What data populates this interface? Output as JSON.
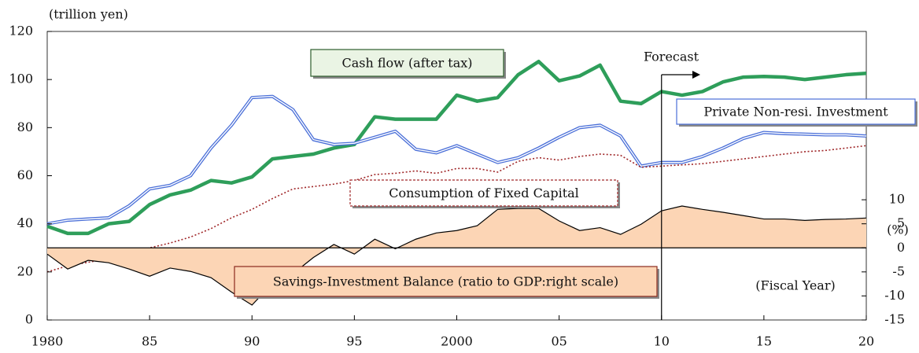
{
  "chart_data": {
    "type": "line",
    "y_axis_label": "(trillion yen)",
    "y2_axis_label": "(%)",
    "x_axis_label": "(Fiscal Year)",
    "forecast_label": "Forecast",
    "forecast_start": 2010,
    "x": [
      1980,
      1981,
      1982,
      1983,
      1984,
      1985,
      1986,
      1987,
      1988,
      1989,
      1990,
      1991,
      1992,
      1993,
      1994,
      1995,
      1996,
      1997,
      1998,
      1999,
      2000,
      2001,
      2002,
      2003,
      2004,
      2005,
      2006,
      2007,
      2008,
      2009,
      2010,
      2011,
      2012,
      2013,
      2014,
      2015,
      2016,
      2017,
      2018,
      2019,
      2020
    ],
    "xlim": [
      1980,
      2020
    ],
    "xticks": [
      {
        "value": 1980,
        "label": "1980"
      },
      {
        "value": 1985,
        "label": "85"
      },
      {
        "value": 1990,
        "label": "90"
      },
      {
        "value": 1995,
        "label": "95"
      },
      {
        "value": 2000,
        "label": "2000"
      },
      {
        "value": 2005,
        "label": "05"
      },
      {
        "value": 2010,
        "label": "10"
      },
      {
        "value": 2015,
        "label": "15"
      },
      {
        "value": 2020,
        "label": "20"
      }
    ],
    "ylim": [
      0,
      120
    ],
    "yticks": [
      0,
      20,
      40,
      60,
      80,
      100,
      120
    ],
    "y2lim": [
      -15,
      45
    ],
    "y2ticks": [
      -15,
      -10,
      -5,
      0,
      5,
      10
    ],
    "series": [
      {
        "name": "Cash flow (after tax)",
        "color": "#2e9e5a",
        "style": "thick",
        "values": [
          39,
          36,
          36,
          40,
          41,
          48,
          52,
          54,
          58,
          57,
          59.5,
          67,
          68,
          69,
          71.5,
          73,
          84.5,
          83.5,
          83.5,
          83.5,
          93.5,
          91,
          92.5,
          102,
          107.5,
          99.5,
          101.5,
          106,
          91,
          90,
          95,
          93.5,
          95,
          99,
          101,
          101.3,
          101,
          100,
          101,
          102,
          102.6
        ]
      },
      {
        "name": "Private Non-resi. Investment",
        "color": "#4a6fd8",
        "style": "double",
        "values": [
          40,
          41.5,
          42,
          42.5,
          47.5,
          54.5,
          56,
          60,
          71.5,
          81,
          92.5,
          93,
          87.5,
          75,
          73,
          73.5,
          76,
          78.5,
          71,
          69.5,
          72.5,
          69,
          65.5,
          67.5,
          71.5,
          76,
          80,
          81,
          76.5,
          64,
          65.5,
          65.5,
          68,
          71.5,
          75.5,
          78,
          77.5,
          77.3,
          77,
          77,
          76.5
        ]
      },
      {
        "name": "Consumption of Fixed Capital",
        "color": "#a0282a",
        "style": "dotted",
        "values": [
          20,
          22.5,
          24,
          25.5,
          27.5,
          30,
          32,
          34.5,
          38,
          42.5,
          46,
          50.5,
          54.5,
          55.5,
          56.5,
          58,
          60.5,
          61,
          62,
          61,
          63,
          63,
          61.5,
          66,
          67.5,
          66.5,
          68,
          69,
          68.5,
          63.5,
          64,
          64.5,
          65,
          66,
          67,
          68,
          69,
          70,
          70.5,
          71.5,
          72.5
        ]
      },
      {
        "name": "Savings-Investment Balance (ratio to GDP:right scale)",
        "color": "#fcd5b5",
        "style": "area",
        "axis": "y2",
        "values": [
          -1.3,
          -4.4,
          -2.6,
          -3.1,
          -4.4,
          -5.9,
          -4.2,
          -4.9,
          -6.2,
          -9.2,
          -11.9,
          -7.4,
          -5.4,
          -2,
          0.7,
          -1.3,
          1.8,
          -0.2,
          1.8,
          3.1,
          3.6,
          4.6,
          8,
          8.2,
          8.2,
          5.6,
          3.6,
          4.2,
          2.8,
          4.9,
          7.7,
          8.7,
          8,
          7.4,
          6.7,
          6,
          6,
          5.7,
          5.9,
          6,
          6.2
        ]
      }
    ]
  }
}
